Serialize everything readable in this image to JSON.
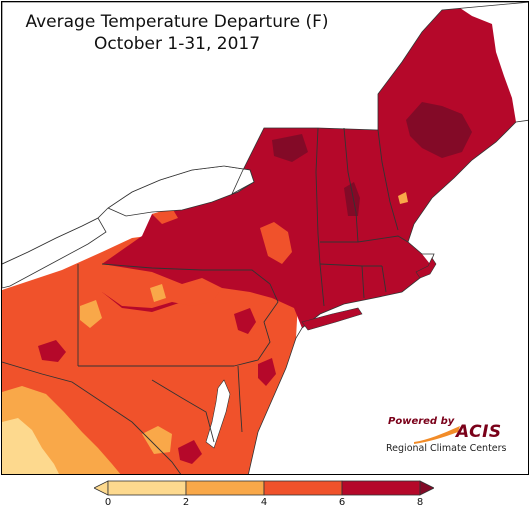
{
  "title": {
    "line1": "Average Temperature Departure (F)",
    "line2": "October 1-31, 2017"
  },
  "colors": {
    "class_0_2": "#fdd98e",
    "class_2_4": "#f9a849",
    "class_4_6": "#f0522b",
    "class_6_8": "#b5082a",
    "class_gt_8": "#830a27",
    "water": "#ffffff",
    "state_border": "#333333",
    "county_border": "#8a2a22"
  },
  "legend": {
    "ticks": [
      "0",
      "2",
      "4",
      "6",
      "8"
    ],
    "arrow_left": "0-color-extends",
    "arrow_right": "8-color-extends"
  },
  "logo": {
    "powered_by": "Powered by",
    "name": "ACIS",
    "subtitle": "Regional Climate Centers"
  }
}
